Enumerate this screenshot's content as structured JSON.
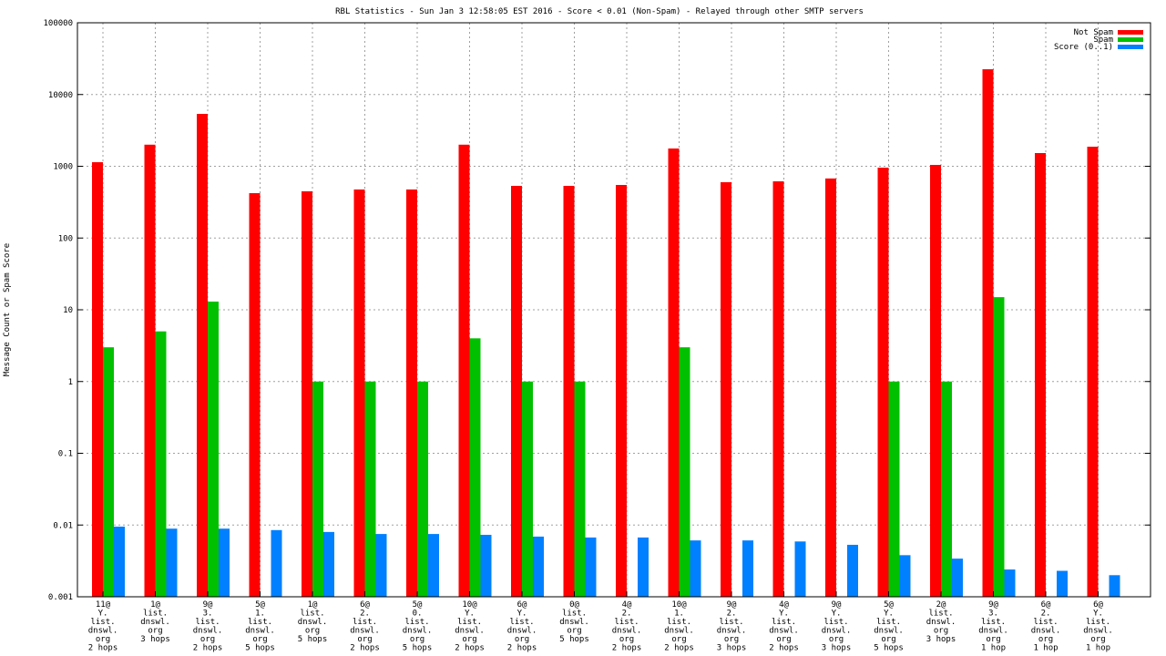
{
  "chart_data": {
    "type": "bar",
    "title": "RBL Statistics - Sun Jan  3 12:58:05 EST 2016 - Score < 0.01 (Non-Spam) - Relayed through other SMTP servers",
    "xlabel": "",
    "ylabel": "Message Count or Spam Score",
    "yscale": "log",
    "ylim": [
      0.001,
      100000
    ],
    "yticks": [
      "0.001",
      "0.01",
      "0.1",
      "1",
      "10",
      "100",
      "1000",
      "10000",
      "100000"
    ],
    "grid": true,
    "legend_position": "top-right",
    "categories": [
      [
        "11@",
        "Y.",
        "list.",
        "dnswl.",
        "org",
        "2 hops"
      ],
      [
        "1@",
        "list.",
        "dnswl.",
        "org",
        "3 hops"
      ],
      [
        "9@",
        "3.",
        "list.",
        "dnswl.",
        "org",
        "2 hops"
      ],
      [
        "5@",
        "1.",
        "list.",
        "dnswl.",
        "org",
        "5 hops"
      ],
      [
        "1@",
        "list.",
        "dnswl.",
        "org",
        "5 hops"
      ],
      [
        "6@",
        "2.",
        "list.",
        "dnswl.",
        "org",
        "2 hops"
      ],
      [
        "5@",
        "0.",
        "list.",
        "dnswl.",
        "org",
        "5 hops"
      ],
      [
        "10@",
        "Y.",
        "list.",
        "dnswl.",
        "org",
        "2 hops"
      ],
      [
        "6@",
        "Y.",
        "list.",
        "dnswl.",
        "org",
        "2 hops"
      ],
      [
        "0@",
        "list.",
        "dnswl.",
        "org",
        "5 hops"
      ],
      [
        "4@",
        "2.",
        "list.",
        "dnswl.",
        "org",
        "2 hops"
      ],
      [
        "10@",
        "1.",
        "list.",
        "dnswl.",
        "org",
        "2 hops"
      ],
      [
        "9@",
        "2.",
        "list.",
        "dnswl.",
        "org",
        "3 hops"
      ],
      [
        "4@",
        "Y.",
        "list.",
        "dnswl.",
        "org",
        "2 hops"
      ],
      [
        "9@",
        "Y.",
        "list.",
        "dnswl.",
        "org",
        "3 hops"
      ],
      [
        "5@",
        "Y.",
        "list.",
        "dnswl.",
        "org",
        "5 hops"
      ],
      [
        "2@",
        "list.",
        "dnswl.",
        "org",
        "3 hops"
      ],
      [
        "9@",
        "3.",
        "list.",
        "dnswl.",
        "org",
        "1 hop"
      ],
      [
        "6@",
        "2.",
        "list.",
        "dnswl.",
        "org",
        "1 hop"
      ],
      [
        "6@",
        "Y.",
        "list.",
        "dnswl.",
        "org",
        "1 hop"
      ]
    ],
    "series": [
      {
        "name": "Not Spam",
        "color": "#ff0000",
        "values": [
          1140,
          2000,
          5370,
          422,
          448,
          475,
          475,
          2000,
          533,
          533,
          549,
          1770,
          600,
          617,
          676,
          957,
          1045,
          22500,
          1528,
          1875
        ]
      },
      {
        "name": "Spam",
        "color": "#00c000",
        "values": [
          3,
          5,
          13,
          null,
          1,
          1,
          1,
          4,
          1,
          1,
          null,
          3,
          null,
          null,
          null,
          1,
          1,
          15,
          null,
          null
        ]
      },
      {
        "name": "Score (0..1)",
        "color": "#0080ff",
        "values": [
          0.0095,
          0.0089,
          0.0089,
          0.0085,
          0.008,
          0.0075,
          0.0075,
          0.0073,
          0.0069,
          0.0067,
          0.0067,
          0.0061,
          0.0061,
          0.0059,
          0.0053,
          0.0038,
          0.0034,
          0.0024,
          0.0023,
          0.002
        ]
      }
    ]
  }
}
